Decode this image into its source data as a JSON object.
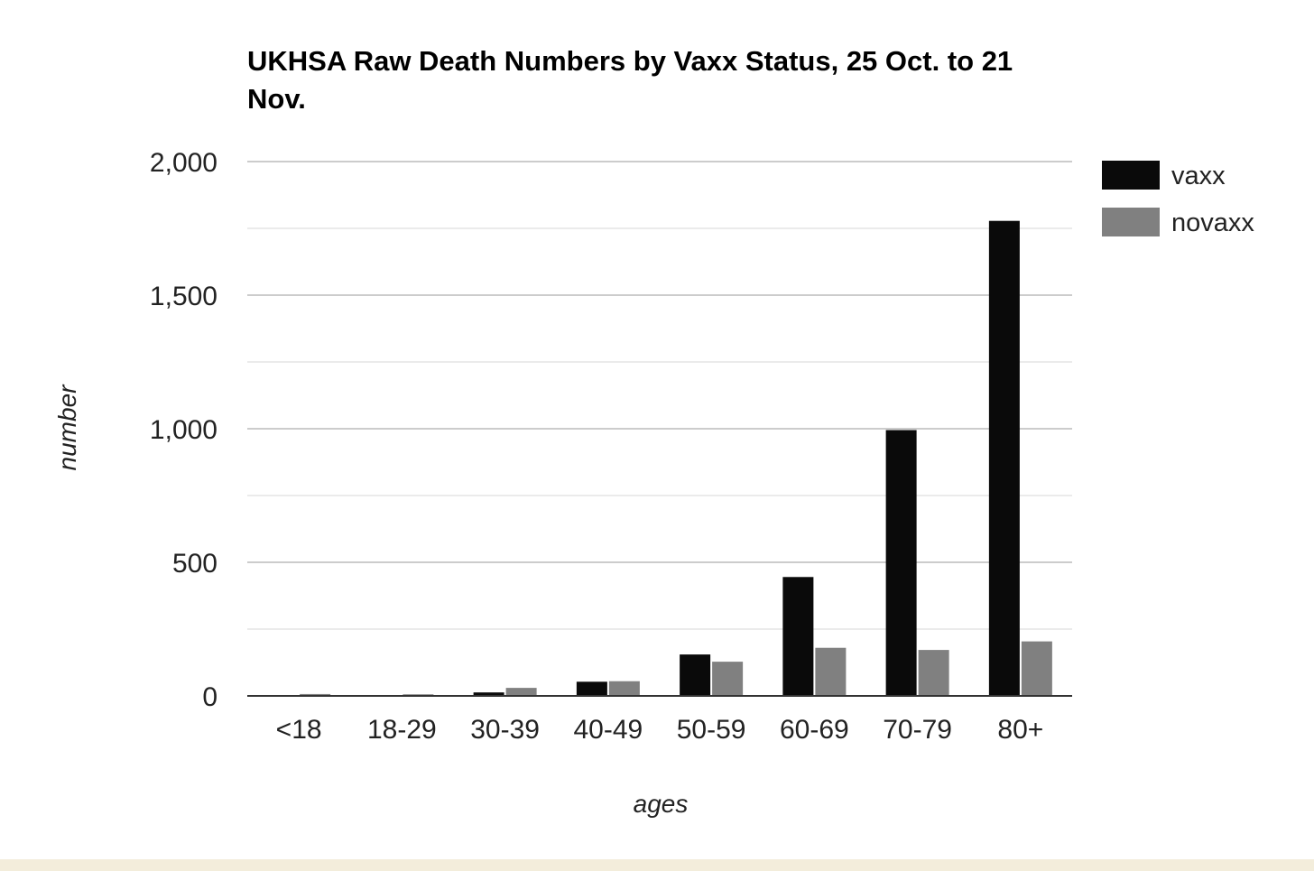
{
  "chart_data": {
    "type": "bar",
    "title_lines": [
      "UKHSA Raw Death Numbers by Vaxx Status, 25 Oct. to 21",
      "Nov."
    ],
    "xlabel": "ages",
    "ylabel": "number",
    "categories": [
      "<18",
      "18-29",
      "30-39",
      "40-49",
      "50-59",
      "60-69",
      "70-79",
      "80+"
    ],
    "series": [
      {
        "name": "vaxx",
        "color": "#0a0a0a",
        "values": [
          2,
          3,
          13,
          53,
          155,
          445,
          995,
          1778
        ]
      },
      {
        "name": "novaxx",
        "color": "#808080",
        "values": [
          7,
          6,
          30,
          55,
          128,
          180,
          172,
          204
        ]
      }
    ],
    "ylim": [
      0,
      2000
    ],
    "yticks": [
      0,
      500,
      1000,
      1500,
      2000
    ],
    "ytick_labels": [
      "0",
      "500",
      "1,000",
      "1,500",
      "2,000"
    ],
    "grid": true,
    "legend_position": "right-top"
  }
}
